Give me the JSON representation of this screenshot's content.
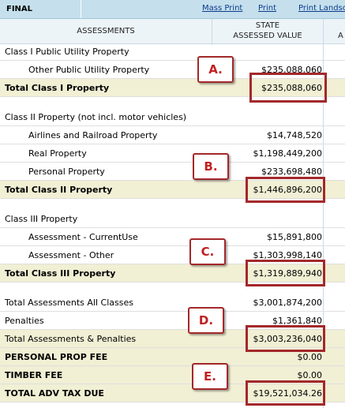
{
  "toolbar": {
    "title": "FINAL",
    "links": [
      "Mass Print",
      "Print",
      "Print Landsc"
    ]
  },
  "table": {
    "col_assessments": "ASSESSMENTS",
    "col_state_line1": "STATE",
    "col_state_line2": "ASSESSED VALUE",
    "col_right_partial": "A",
    "rows": [
      {
        "label": "Class I Public Utility Property",
        "value": ""
      },
      {
        "label": "Other Public Utility Property",
        "value": "$235,088,060"
      },
      {
        "label": "Total Class I Property",
        "value": "$235,088,060"
      },
      {
        "label": "Class II Property (not incl. motor vehicles)",
        "value": ""
      },
      {
        "label": "Airlines and Railroad Property",
        "value": "$14,748,520"
      },
      {
        "label": "Real Property",
        "value": "$1,198,449,200"
      },
      {
        "label": "Personal Property",
        "value": "$233,698,480"
      },
      {
        "label": "Total Class II Property",
        "value": "$1,446,896,200"
      },
      {
        "label": "Class III Property",
        "value": ""
      },
      {
        "label": "Assessment - CurrentUse",
        "value": "$15,891,800"
      },
      {
        "label": "Assessment - Other",
        "value": "$1,303,998,140"
      },
      {
        "label": "Total Class III Property",
        "value": "$1,319,889,940"
      },
      {
        "label": "Total Assessments All Classes",
        "value": "$3,001,874,200"
      },
      {
        "label": "Penalties",
        "value": "$1,361,840"
      },
      {
        "label": "Total Assessments & Penalties",
        "value": "$3,003,236,040"
      },
      {
        "label": "PERSONAL PROP FEE",
        "value": "$0.00"
      },
      {
        "label": "TIMBER FEE",
        "value": "$0.00"
      },
      {
        "label": "TOTAL ADV TAX DUE",
        "value": "$19,521,034.26"
      }
    ]
  },
  "callouts": [
    "A.",
    "B.",
    "C.",
    "D.",
    "E."
  ],
  "colors": {
    "header_bar": "#c5e0ec",
    "total_row": "#f1efd4",
    "callout_border": "#a3282a",
    "callout_text": "#c21f1f"
  }
}
